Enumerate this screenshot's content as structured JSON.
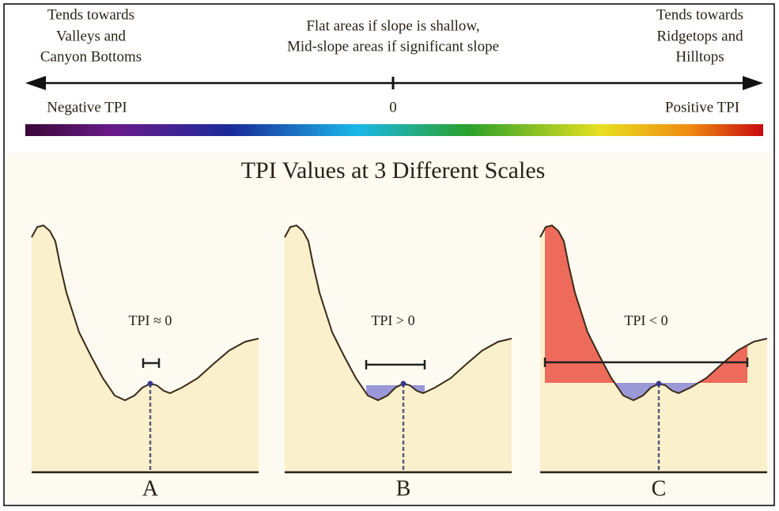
{
  "legend": {
    "left": [
      "Tends towards",
      "Valleys and",
      "Canyon Bottoms"
    ],
    "center": [
      "Flat areas if slope is shallow,",
      "Mid-slope areas if significant slope"
    ],
    "right": [
      "Tends towards",
      "Ridgetops and",
      "Hilltops"
    ],
    "negative": "Negative TPI",
    "zero": "0",
    "positive": "Positive TPI"
  },
  "title": "TPI Values at 3 Different Scales",
  "panels": [
    {
      "label": "TPI ≈ 0",
      "letter": "A"
    },
    {
      "label": "TPI > 0",
      "letter": "B"
    },
    {
      "label": "TPI < 0",
      "letter": "C"
    }
  ]
}
